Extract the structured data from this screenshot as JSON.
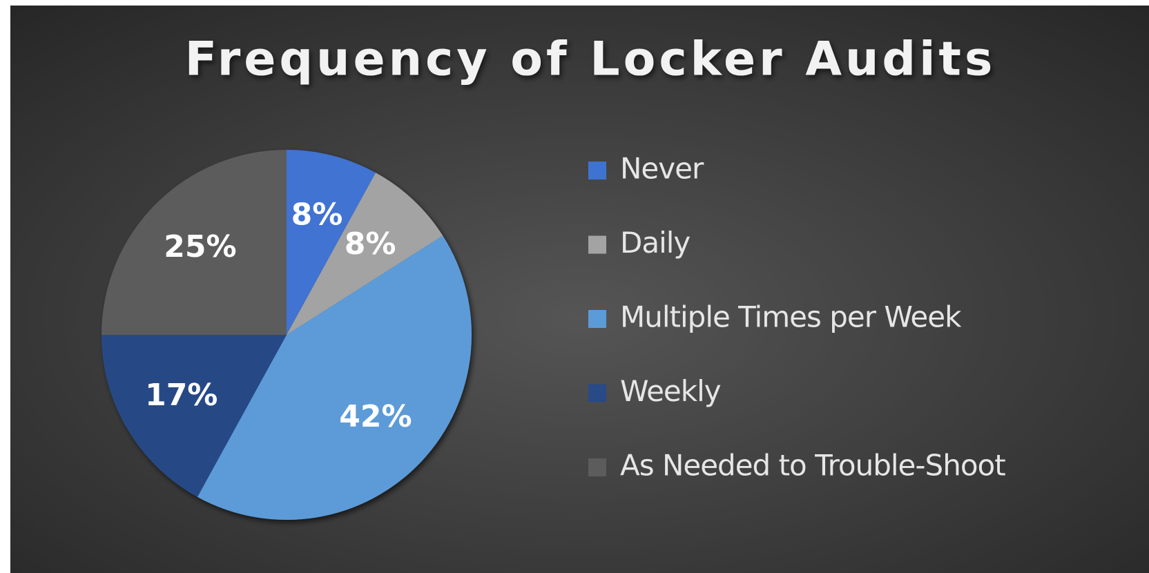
{
  "chart_data": {
    "type": "pie",
    "title": "Frequency of Locker Audits",
    "categories": [
      "Never",
      "Daily",
      "Multiple Times per Week",
      "Weekly",
      "As Needed to Trouble-Shoot"
    ],
    "values": [
      8,
      8,
      42,
      17,
      25
    ],
    "value_labels": [
      "8%",
      "8%",
      "42%",
      "17%",
      "25%"
    ],
    "colors": [
      "#3f73d2",
      "#a3a3a3",
      "#5b9bd8",
      "#284a86",
      "#5c5c5c"
    ],
    "legend": "right"
  }
}
